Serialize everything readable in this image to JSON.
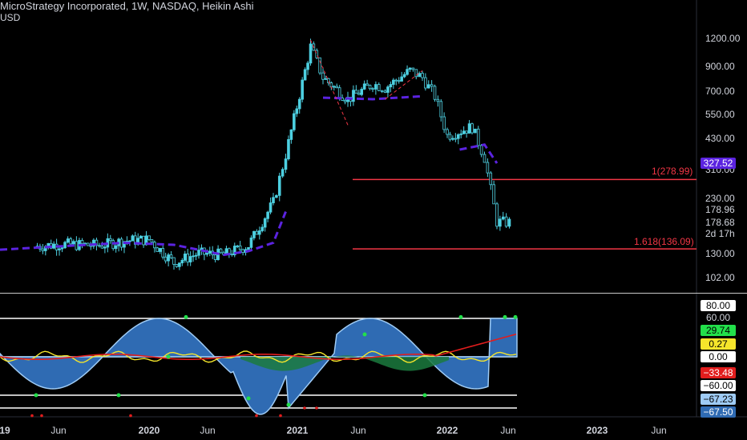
{
  "header": {
    "title": "MicroStrategy Incorporated, 1W, NASDAQ, Heikin Ashi",
    "currency": "USD"
  },
  "price_axis": {
    "ticks": [
      "1200.00",
      "900.00",
      "700.00",
      "550.00",
      "430.00",
      "310.00",
      "230.00",
      "130.00",
      "102.00"
    ],
    "badges": {
      "last_price": "327.52",
      "price_1": "178.96",
      "price_2": "178.68",
      "countdown": "2d 17h"
    }
  },
  "fib_levels": [
    {
      "label": "1(278.99)",
      "value": 278.99
    },
    {
      "label": "1.618(136.09)",
      "value": 136.09
    }
  ],
  "indicator_axis": {
    "ticks": [
      "80.00",
      "60.00",
      "29.74",
      "0.27",
      "0.00",
      "−33.48",
      "−60.00",
      "−67.23",
      "−67.50"
    ],
    "levels": [
      80,
      60,
      0,
      -60
    ]
  },
  "time_axis": {
    "ticks": [
      {
        "label": "19",
        "year": true
      },
      {
        "label": "Jun",
        "year": false
      },
      {
        "label": "2020",
        "year": true
      },
      {
        "label": "Jun",
        "year": false
      },
      {
        "label": "2021",
        "year": true
      },
      {
        "label": "Jun",
        "year": false
      },
      {
        "label": "2022",
        "year": true
      },
      {
        "label": "Jun",
        "year": false
      },
      {
        "label": "2023",
        "year": true
      },
      {
        "label": "Jun",
        "year": false
      }
    ]
  },
  "colors": {
    "background": "#000000",
    "candle": "#4dd0e1",
    "ma_line": "#5b23e0",
    "fib_line": "#f23645",
    "wave_fill": "#2f6bb3",
    "wave_edge": "#9ecbf5",
    "green_fill": "#1b7a3e",
    "yellow": "#f5e52b",
    "red": "#e11d1d",
    "green_dots": "#22e04a"
  },
  "chart_data": {
    "type": "candlestick",
    "series": [
      {
        "name": "MicroStrategy Incorporated, 1W, NASDAQ, Heikin Ashi",
        "dates": [
          "2019-04",
          "2019-06",
          "2019-09",
          "2019-11",
          "2020-01",
          "2020-03",
          "2020-05",
          "2020-07",
          "2020-09",
          "2020-11",
          "2020-12",
          "2021-02",
          "2021-03",
          "2021-05",
          "2021-07",
          "2021-08",
          "2021-10",
          "2021-11",
          "2021-12",
          "2022-01",
          "2022-03",
          "2022-04",
          "2022-05",
          "2022-06"
        ],
        "values": [
          140,
          143,
          141,
          148,
          150,
          118,
          130,
          128,
          141,
          220,
          360,
          1100,
          800,
          640,
          750,
          720,
          860,
          800,
          660,
          440,
          480,
          350,
          180,
          178.68
        ]
      }
    ],
    "ylim": [
      95,
      1400
    ],
    "yscale": "log",
    "horizontal_lines": [
      278.99,
      136.09
    ]
  }
}
